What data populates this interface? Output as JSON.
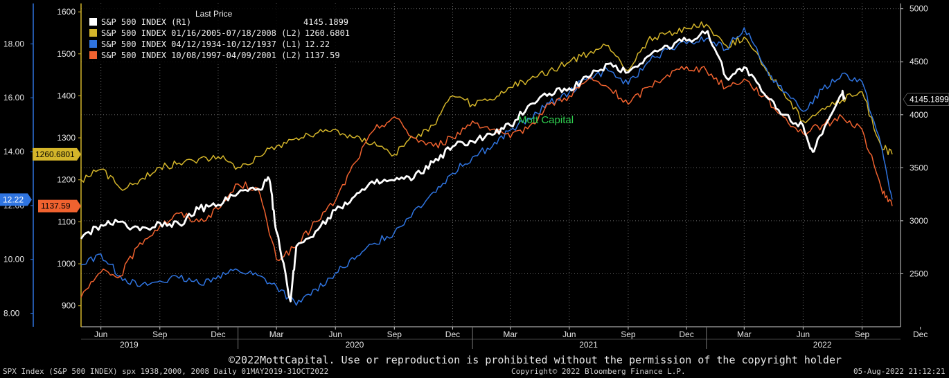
{
  "chart_data": {
    "type": "line",
    "title": "",
    "legend": {
      "header": "Last Price",
      "placement": "top-left",
      "entries": [
        {
          "label": "S&P 500 INDEX  (R1)",
          "value": "4145.1899",
          "color": "#ffffff"
        },
        {
          "label": "S&P 500 INDEX 01/16/2005-07/18/2008  (L2)",
          "value": "1260.6801",
          "color": "#d4b52a"
        },
        {
          "label": "S&P 500 INDEX 04/12/1934-10/12/1937  (L1)",
          "value": "12.22",
          "color": "#2f74e0"
        },
        {
          "label": "S&P 500 INDEX 10/08/1997-04/09/2001  (L2)",
          "value": "1137.59",
          "color": "#f0622f"
        }
      ]
    },
    "x_axis": {
      "months": [
        "Jun",
        "Sep",
        "Dec",
        "Mar",
        "Jun",
        "Sep",
        "Dec",
        "Mar",
        "Jun",
        "Sep",
        "Dec",
        "Mar",
        "Jun",
        "Sep",
        "Dec"
      ],
      "years": [
        "2019",
        "2020",
        "2021",
        "2022"
      ],
      "range": [
        "2019-05-01",
        "2022-10-31"
      ]
    },
    "y_axis_L1": {
      "ticks": [
        "18.00",
        "16.00",
        "14.00",
        "12.00",
        "10.00",
        "8.00"
      ],
      "range": [
        7.5,
        19.5
      ],
      "color": "#2f74e0"
    },
    "y_axis_L2": {
      "ticks": [
        "1600",
        "1500",
        "1400",
        "1300",
        "1200",
        "1100",
        "1000",
        "900"
      ],
      "range": [
        850,
        1620
      ],
      "color": "#d4b52a"
    },
    "y_axis_R1": {
      "ticks": [
        "5000",
        "4500",
        "4000",
        "3500",
        "3000",
        "2500"
      ],
      "range": [
        2000,
        5050
      ],
      "color": "#ffffff"
    },
    "grid": true,
    "annotation": "Mott Capital",
    "series": [
      {
        "name": "S&P 500 INDEX  (R1)",
        "axis": "R1",
        "color": "#ffffff",
        "x": [
          "2019-05-01",
          "2019-06-01",
          "2019-07-01",
          "2019-08-01",
          "2019-09-01",
          "2019-10-01",
          "2019-11-01",
          "2019-12-01",
          "2020-01-01",
          "2020-02-01",
          "2020-02-19",
          "2020-03-01",
          "2020-03-23",
          "2020-04-01",
          "2020-05-01",
          "2020-06-01",
          "2020-07-01",
          "2020-08-01",
          "2020-09-01",
          "2020-10-01",
          "2020-11-01",
          "2020-12-01",
          "2021-01-01",
          "2021-02-01",
          "2021-03-01",
          "2021-04-01",
          "2021-05-01",
          "2021-06-01",
          "2021-07-01",
          "2021-08-01",
          "2021-09-01",
          "2021-10-01",
          "2021-11-01",
          "2021-12-01",
          "2022-01-03",
          "2022-02-01",
          "2022-03-01",
          "2022-04-01",
          "2022-05-01",
          "2022-06-01",
          "2022-06-16",
          "2022-07-01",
          "2022-08-01",
          "2022-08-05"
        ],
        "values": [
          2830,
          2960,
          2990,
          2910,
          2980,
          2970,
          3110,
          3150,
          3260,
          3300,
          3390,
          2900,
          2240,
          2760,
          2900,
          3100,
          3230,
          3350,
          3380,
          3400,
          3550,
          3700,
          3750,
          3810,
          3900,
          4100,
          4200,
          4250,
          4350,
          4480,
          4400,
          4550,
          4650,
          4700,
          4790,
          4350,
          4450,
          4200,
          4000,
          3900,
          3650,
          3820,
          4200,
          4145.1899
        ]
      },
      {
        "name": "S&P 500 INDEX 01/16/2005-07/18/2008  (L2)",
        "axis": "L2",
        "color": "#d4b52a",
        "x": [
          "2019-05-01",
          "2019-06-01",
          "2019-07-01",
          "2019-08-01",
          "2019-09-01",
          "2019-10-01",
          "2019-11-01",
          "2019-12-01",
          "2020-01-01",
          "2020-02-01",
          "2020-03-01",
          "2020-04-01",
          "2020-05-01",
          "2020-06-01",
          "2020-07-01",
          "2020-08-01",
          "2020-09-01",
          "2020-10-01",
          "2020-11-01",
          "2020-12-01",
          "2021-01-01",
          "2021-02-01",
          "2021-03-01",
          "2021-04-01",
          "2021-05-01",
          "2021-06-01",
          "2021-07-01",
          "2021-08-01",
          "2021-09-01",
          "2021-10-01",
          "2021-11-01",
          "2021-12-01",
          "2022-01-01",
          "2022-02-01",
          "2022-03-01",
          "2022-04-01",
          "2022-05-01",
          "2022-06-01",
          "2022-07-01",
          "2022-08-01",
          "2022-09-01",
          "2022-10-01",
          "2022-10-18"
        ],
        "values": [
          1200,
          1225,
          1180,
          1200,
          1230,
          1240,
          1250,
          1255,
          1230,
          1255,
          1280,
          1300,
          1310,
          1320,
          1300,
          1290,
          1260,
          1300,
          1330,
          1400,
          1380,
          1390,
          1420,
          1440,
          1460,
          1480,
          1500,
          1520,
          1460,
          1530,
          1550,
          1560,
          1570,
          1520,
          1540,
          1470,
          1410,
          1340,
          1370,
          1390,
          1410,
          1280,
          1260.6801
        ]
      },
      {
        "name": "S&P 500 INDEX 04/12/1934-10/12/1937  (L1)",
        "axis": "L1",
        "color": "#2f74e0",
        "x": [
          "2019-05-01",
          "2019-06-01",
          "2019-07-01",
          "2019-08-01",
          "2019-09-01",
          "2019-10-01",
          "2019-11-01",
          "2019-12-01",
          "2020-01-01",
          "2020-02-01",
          "2020-03-01",
          "2020-04-01",
          "2020-05-01",
          "2020-06-01",
          "2020-07-01",
          "2020-08-01",
          "2020-09-01",
          "2020-10-01",
          "2020-11-01",
          "2020-12-01",
          "2021-01-01",
          "2021-02-01",
          "2021-03-01",
          "2021-04-01",
          "2021-05-01",
          "2021-06-01",
          "2021-07-01",
          "2021-08-01",
          "2021-09-01",
          "2021-10-01",
          "2021-11-01",
          "2021-12-01",
          "2022-01-01",
          "2022-02-01",
          "2022-03-01",
          "2022-04-01",
          "2022-05-01",
          "2022-06-01",
          "2022-07-01",
          "2022-08-01",
          "2022-09-01",
          "2022-10-01",
          "2022-10-18"
        ],
        "values": [
          9.8,
          10.2,
          9.4,
          9.0,
          9.2,
          9.3,
          9.1,
          9.4,
          9.6,
          9.4,
          9.0,
          8.3,
          8.9,
          9.5,
          10.0,
          10.6,
          11.0,
          11.8,
          12.5,
          13.2,
          13.8,
          14.2,
          14.8,
          15.2,
          15.8,
          16.2,
          16.8,
          17.0,
          16.5,
          17.3,
          17.8,
          18.0,
          18.2,
          17.8,
          18.6,
          17.2,
          16.2,
          15.5,
          16.3,
          16.9,
          16.6,
          14.2,
          12.22
        ]
      },
      {
        "name": "S&P 500 INDEX 10/08/1997-04/09/2001  (L2)",
        "axis": "L2",
        "color": "#f0622f",
        "x": [
          "2019-05-01",
          "2019-06-01",
          "2019-07-01",
          "2019-08-01",
          "2019-09-01",
          "2019-10-01",
          "2019-11-01",
          "2019-12-01",
          "2020-01-01",
          "2020-02-01",
          "2020-03-01",
          "2020-04-01",
          "2020-05-01",
          "2020-06-01",
          "2020-07-01",
          "2020-08-01",
          "2020-09-01",
          "2020-10-01",
          "2020-11-01",
          "2020-12-01",
          "2021-01-01",
          "2021-02-01",
          "2021-03-01",
          "2021-04-01",
          "2021-05-01",
          "2021-06-01",
          "2021-07-01",
          "2021-08-01",
          "2021-09-01",
          "2021-10-01",
          "2021-11-01",
          "2021-12-01",
          "2022-01-01",
          "2022-02-01",
          "2022-03-01",
          "2022-04-01",
          "2022-05-01",
          "2022-06-01",
          "2022-07-01",
          "2022-08-01",
          "2022-09-01",
          "2022-10-01",
          "2022-10-18"
        ],
        "values": [
          920,
          980,
          970,
          1050,
          1090,
          1120,
          1100,
          1130,
          1190,
          1180,
          1010,
          1040,
          1100,
          1150,
          1240,
          1320,
          1350,
          1300,
          1280,
          1300,
          1340,
          1320,
          1300,
          1330,
          1380,
          1400,
          1440,
          1420,
          1380,
          1420,
          1450,
          1470,
          1460,
          1420,
          1440,
          1400,
          1350,
          1310,
          1330,
          1350,
          1320,
          1180,
          1137.59
        ]
      }
    ]
  },
  "footer": {
    "copyright_note": "©2022MottCapital. Use or reproduction is prohibited without the permission of the copyright holder",
    "source": "SPX Index (S&P 500 INDEX) spx 1938,2000, 2008  Daily 01MAY2019-31OCT2022",
    "copyright": "Copyright© 2022 Bloomberg Finance L.P.",
    "timestamp": "05-Aug-2022 21:12:21"
  }
}
